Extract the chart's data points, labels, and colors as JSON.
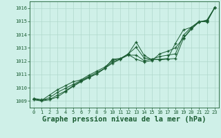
{
  "bg_color": "#cff0e8",
  "grid_color": "#b0d8cc",
  "line_color": "#1a5c32",
  "xlabel": "Graphe pression niveau de la mer (hPa)",
  "xlabel_fontsize": 7.5,
  "ylim": [
    1008.5,
    1016.5
  ],
  "xlim": [
    -0.5,
    23.5
  ],
  "yticks": [
    1009,
    1010,
    1011,
    1012,
    1013,
    1014,
    1015,
    1016
  ],
  "xticks": [
    0,
    1,
    2,
    3,
    4,
    5,
    6,
    7,
    8,
    9,
    10,
    11,
    12,
    13,
    14,
    15,
    16,
    17,
    18,
    19,
    20,
    21,
    22,
    23
  ],
  "series": [
    [
      1009.2,
      1009.1,
      1009.1,
      1009.3,
      1009.7,
      1010.1,
      1010.45,
      1010.75,
      1011.05,
      1011.45,
      1011.85,
      1012.15,
      1012.45,
      1012.45,
      1012.05,
      1012.15,
      1012.1,
      1012.15,
      1012.2,
      1013.7,
      1014.4,
      1014.95,
      1015.05,
      1016.05
    ],
    [
      1009.15,
      1009.05,
      1009.25,
      1009.65,
      1009.95,
      1010.25,
      1010.55,
      1010.85,
      1011.15,
      1011.45,
      1011.95,
      1012.15,
      1012.55,
      1013.05,
      1012.25,
      1012.15,
      1012.35,
      1012.45,
      1012.55,
      1013.95,
      1014.55,
      1014.95,
      1015.0,
      1016.05
    ],
    [
      1009.1,
      1009.0,
      1009.1,
      1009.45,
      1009.75,
      1010.15,
      1010.5,
      1010.8,
      1011.05,
      1011.45,
      1012.15,
      1012.2,
      1012.5,
      1012.15,
      1011.95,
      1012.05,
      1012.55,
      1012.75,
      1013.0,
      1013.75,
      1014.45,
      1014.95,
      1015.1,
      1016.05
    ],
    [
      1009.1,
      1009.05,
      1009.45,
      1009.85,
      1010.15,
      1010.45,
      1010.6,
      1010.95,
      1011.25,
      1011.55,
      1012.05,
      1012.2,
      1012.55,
      1013.45,
      1012.45,
      1012.1,
      1012.15,
      1012.2,
      1013.35,
      1014.35,
      1014.55,
      1015.0,
      1014.95,
      1016.05
    ]
  ]
}
